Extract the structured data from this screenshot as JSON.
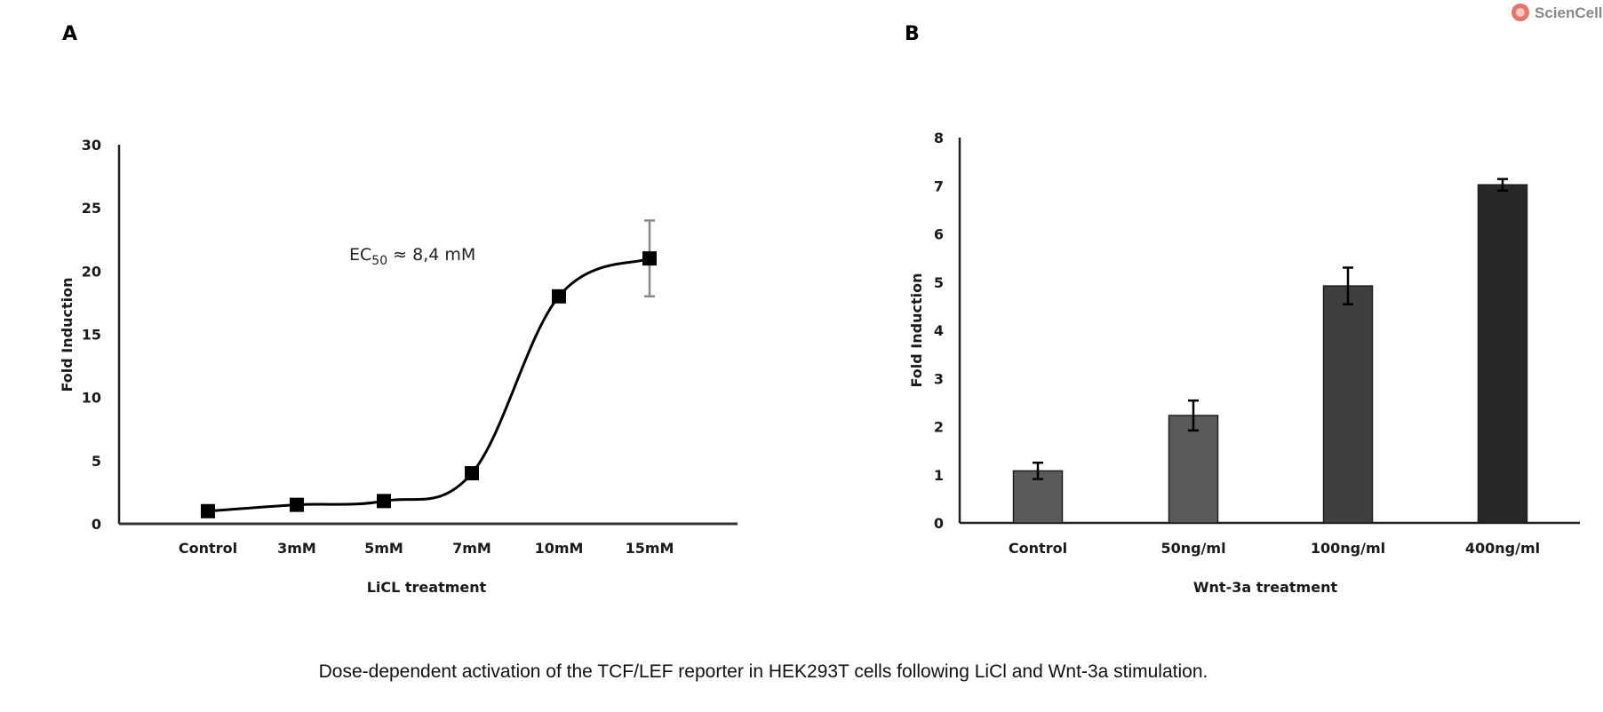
{
  "logo": {
    "text": "ScienCell",
    "color": "#e8736c"
  },
  "caption": "Dose-dependent activation of the TCF/LEF reporter in HEK293T cells following LiCl and Wnt-3a stimulation.",
  "chart_data": [
    {
      "panel": "A",
      "type": "line",
      "title": "",
      "xlabel": "LiCL treatment",
      "ylabel": "Fold Induction",
      "categories": [
        "Control",
        "3mM",
        "5mM",
        "7mM",
        "10mM",
        "15mM"
      ],
      "values": [
        1.0,
        1.5,
        1.8,
        4.0,
        18.0,
        21.0
      ],
      "errors": [
        null,
        null,
        null,
        null,
        null,
        3.0
      ],
      "ylim": [
        0,
        30
      ],
      "yticks": [
        0,
        5,
        10,
        15,
        20,
        25,
        30
      ],
      "annotation": {
        "prefix": "EC",
        "subscript": "50",
        "suffix": " ≈ 8,4 mM"
      },
      "grid": false,
      "line_color": "#000000"
    },
    {
      "panel": "B",
      "type": "bar",
      "title": "",
      "xlabel": "Wnt-3a treatment",
      "ylabel": "Fold Induction",
      "categories": [
        "Control",
        "50ng/ml",
        "100ng/ml",
        "400ng/ml"
      ],
      "values": [
        1.08,
        2.23,
        4.92,
        7.02
      ],
      "errors": [
        0.17,
        0.31,
        0.38,
        0.12
      ],
      "colors": [
        "#5a5a5a",
        "#5a5a5a",
        "#3f3f3f",
        "#272727"
      ],
      "ylim": [
        0,
        8
      ],
      "yticks": [
        0,
        1,
        2,
        3,
        4,
        5,
        6,
        7,
        8
      ],
      "grid": false
    }
  ]
}
